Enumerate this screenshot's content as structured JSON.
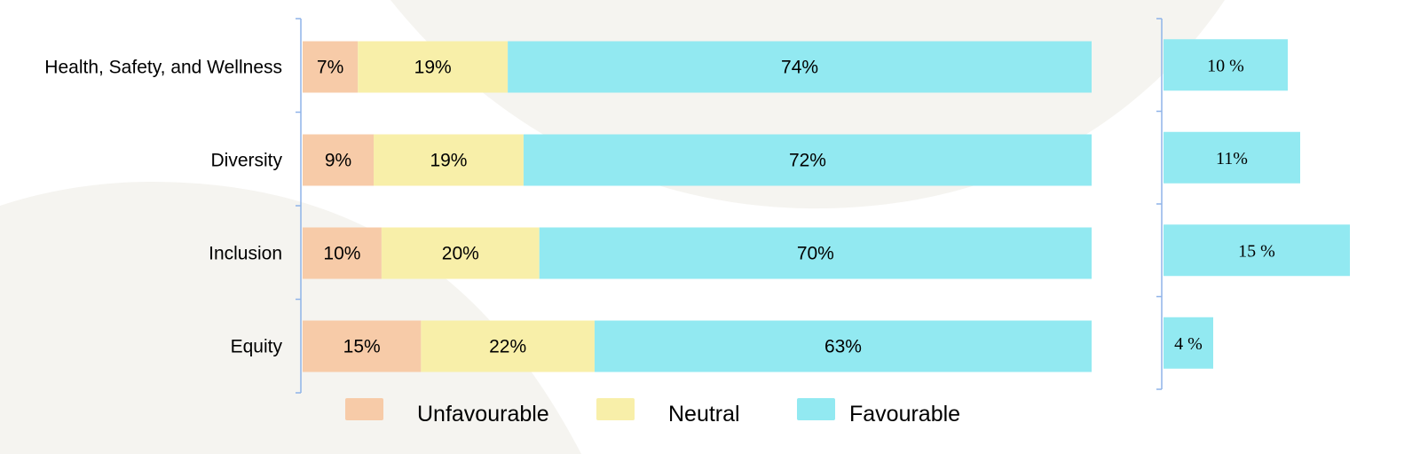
{
  "chart_data": [
    {
      "type": "bar",
      "orientation": "horizontal",
      "stacked": true,
      "normalized": true,
      "categories": [
        "Health, Safety, and Wellness",
        "Diversity",
        "Inclusion",
        "Equity"
      ],
      "series": [
        {
          "name": "Unfavourable",
          "color": "#f7cba8",
          "values": [
            7,
            9,
            10,
            15
          ],
          "labels": [
            "7%",
            "9%",
            "10%",
            "15%"
          ]
        },
        {
          "name": "Neutral",
          "color": "#f8efa9",
          "values": [
            19,
            19,
            20,
            22
          ],
          "labels": [
            "19%",
            "19%",
            "20%",
            "22%"
          ]
        },
        {
          "name": "Favourable",
          "color": "#92e9f1",
          "values": [
            74,
            72,
            70,
            63
          ],
          "labels": [
            "74%",
            "72%",
            "70%",
            "63%"
          ]
        }
      ],
      "xlim": [
        0,
        100
      ],
      "grid": false,
      "legend": {
        "position": "bottom",
        "entries": [
          "Unfavourable",
          "Neutral",
          "Favourable"
        ]
      },
      "axis_color": "#8fb3e8"
    },
    {
      "type": "bar",
      "orientation": "horizontal",
      "categories": [
        "Health, Safety, and Wellness",
        "Diversity",
        "Inclusion",
        "Equity"
      ],
      "values": [
        10,
        11,
        15,
        4
      ],
      "labels": [
        "10 %",
        "11%",
        "15 %",
        "4 %"
      ],
      "color": "#92e9f1",
      "xlim": [
        0,
        15
      ],
      "grid": false
    }
  ],
  "background": {
    "shape_color": "#f5f4f0"
  }
}
